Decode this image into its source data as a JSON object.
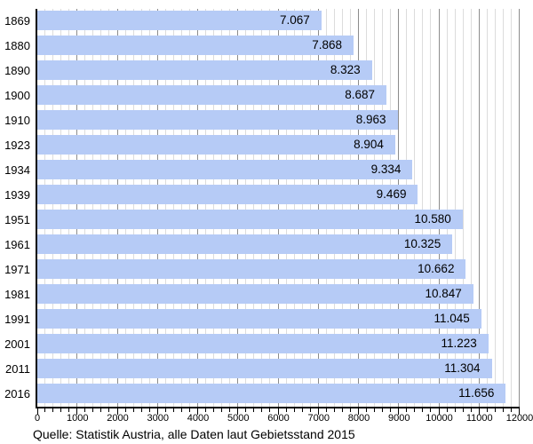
{
  "chart_data": {
    "type": "bar",
    "orientation": "horizontal",
    "title": "",
    "xlabel": "",
    "ylabel": "",
    "categories": [
      "1869",
      "1880",
      "1890",
      "1900",
      "1910",
      "1923",
      "1934",
      "1939",
      "1951",
      "1961",
      "1971",
      "1981",
      "1991",
      "2001",
      "2011",
      "2016"
    ],
    "values": [
      7067,
      7868,
      8323,
      8687,
      8963,
      8904,
      9334,
      9469,
      10580,
      10325,
      10662,
      10847,
      11045,
      11223,
      11304,
      11656
    ],
    "value_labels": [
      "7.067",
      "7.868",
      "8.323",
      "8.687",
      "8.963",
      "8.904",
      "9.334",
      "9.469",
      "10.580",
      "10.325",
      "10.662",
      "10.847",
      "11.045",
      "11.223",
      "11.304",
      "11.656"
    ],
    "xlim": [
      0,
      12000
    ],
    "x_major_tick_step": 1000,
    "x_minor_tick_step": 200,
    "x_tick_labels": [
      "0",
      "1000",
      "2000",
      "3000",
      "4000",
      "5000",
      "6000",
      "7000",
      "8000",
      "9000",
      "10000",
      "11000",
      "12000"
    ],
    "grid": "vertical",
    "legend": "none"
  },
  "caption": "Quelle: Statistik Austria, alle Daten laut Gebietsstand 2015",
  "colors": {
    "background": "#FFFFFF",
    "bar_fill": "#B6CBF6",
    "grid_minor": "#DCDCDC",
    "grid_major": "#8C8C8C",
    "axis": "#000000",
    "text": "#000000"
  }
}
